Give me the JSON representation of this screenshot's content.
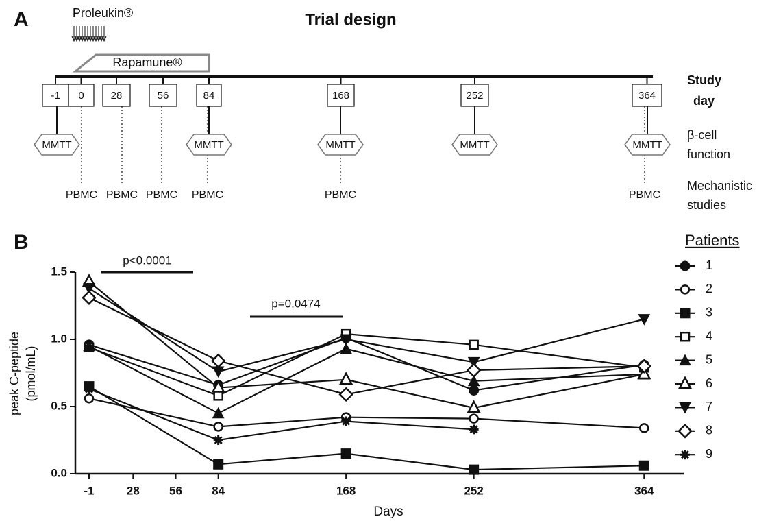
{
  "panel_a": {
    "label": "A",
    "title": "Trial design",
    "proleukin": "Proleukin®",
    "rapamune": "Rapamune®",
    "study_day": [
      "Study",
      "day"
    ],
    "beta_cell": [
      "β-cell",
      "function"
    ],
    "mechanistic": [
      "Mechanistic",
      "studies"
    ],
    "days": [
      "-1",
      "0",
      "28",
      "56",
      "84",
      "168",
      "252",
      "364"
    ],
    "mmtt": [
      "MMTT",
      "MMTT",
      "MMTT",
      "MMTT",
      "MMTT"
    ],
    "pbmc": [
      "PBMC",
      "PBMC",
      "PBMC",
      "PBMC",
      "PBMC",
      "PBMC"
    ]
  },
  "chart_data": {
    "type": "line",
    "panel_label": "B",
    "xlabel": "Days",
    "ylabel": [
      "peak C-peptide",
      "(pmol/mL)"
    ],
    "annotations": [
      "p<0.0001",
      "p=0.0474"
    ],
    "legend_title": "Patients",
    "x": [
      -1,
      84,
      168,
      252,
      364
    ],
    "xlim": [
      -10,
      390
    ],
    "xticks": [
      -1,
      28,
      56,
      84,
      168,
      252,
      364
    ],
    "ylim": [
      0,
      1.5
    ],
    "yticks": [
      {
        "value": 0,
        "label": "0.0"
      },
      {
        "value": 0.5,
        "label": "0.5"
      },
      {
        "value": 1,
        "label": "1.0"
      },
      {
        "value": 1.5,
        "label": "1.5"
      }
    ],
    "series": [
      {
        "name": "1",
        "color": "#111111",
        "marker": "circle",
        "values": [
          0.96,
          0.66,
          1.01,
          0.62,
          0.81
        ]
      },
      {
        "name": "2",
        "color": "#111111",
        "marker": "circle-open",
        "values": [
          0.56,
          0.35,
          0.42,
          0.41,
          0.34
        ]
      },
      {
        "name": "3",
        "color": "#111111",
        "marker": "square",
        "values": [
          0.65,
          0.07,
          0.15,
          0.03,
          0.06
        ]
      },
      {
        "name": "4",
        "color": "#111111",
        "marker": "square-open",
        "values": [
          0.94,
          0.58,
          1.04,
          0.96,
          0.79
        ]
      },
      {
        "name": "5",
        "color": "#111111",
        "marker": "triangle",
        "values": [
          0.95,
          0.45,
          0.93,
          0.69,
          0.74
        ]
      },
      {
        "name": "6",
        "color": "#111111",
        "marker": "triangle-open",
        "values": [
          1.43,
          0.64,
          0.7,
          0.49,
          0.74
        ]
      },
      {
        "name": "7",
        "color": "#111111",
        "marker": "triangle-down",
        "values": [
          1.38,
          0.76,
          1.0,
          0.83,
          1.15
        ]
      },
      {
        "name": "8",
        "color": "#111111",
        "marker": "diamond-open",
        "values": [
          1.31,
          0.84,
          0.59,
          0.77,
          0.8
        ]
      },
      {
        "name": "9",
        "color": "#111111",
        "marker": "asterisk",
        "values": [
          0.63,
          0.25,
          0.39,
          0.33,
          null
        ]
      }
    ]
  }
}
